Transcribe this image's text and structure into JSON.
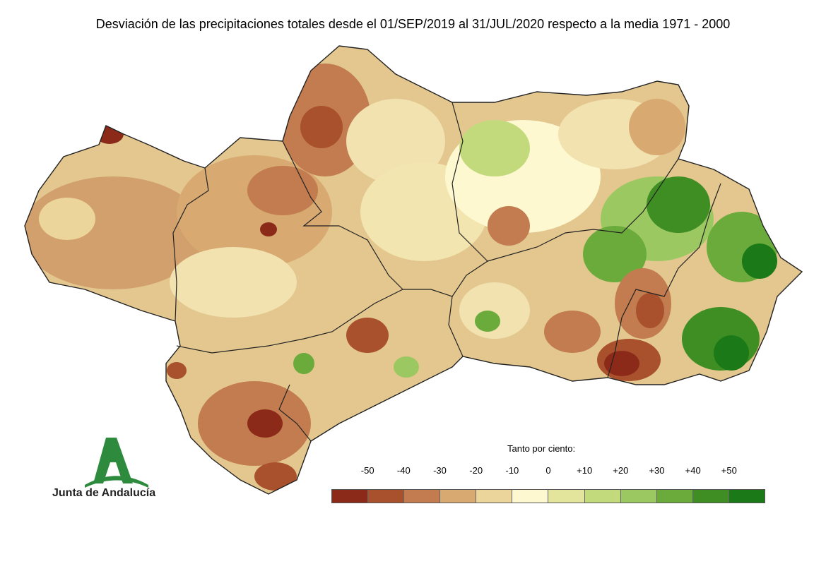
{
  "title": "Desviación de las precipitaciones totales desde el 01/SEP/2019 al 31/JUL/2020 respecto a la media 1971 - 2000",
  "logo": {
    "text": "Junta de Andalucía",
    "icon": "junta-andalucia-logo",
    "color": "#2e8b3e"
  },
  "legend": {
    "title": "Tanto por ciento:",
    "ticks": [
      "-50",
      "-40",
      "-30",
      "-20",
      "-10",
      "0",
      "+10",
      "+20",
      "+30",
      "+40",
      "+50"
    ],
    "colors": [
      "#8c2a1a",
      "#a9512d",
      "#c27c4f",
      "#d8aa72",
      "#ecd59a",
      "#fdf8d0",
      "#e3e59c",
      "#c3da7c",
      "#9cc862",
      "#6aab3c",
      "#3f8e24",
      "#1b7a17"
    ]
  }
}
